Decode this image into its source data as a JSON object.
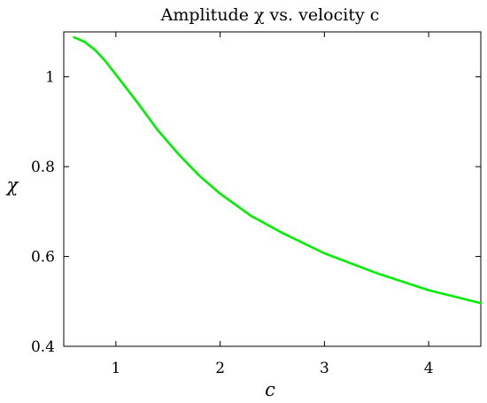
{
  "chart_data": {
    "type": "line",
    "title": "Amplitude χ vs. velocity c",
    "xlabel": "c",
    "ylabel": "χ",
    "xlim": [
      0.5,
      4.5
    ],
    "ylim": [
      0.4,
      1.1
    ],
    "xticks": [
      1,
      2,
      3,
      4
    ],
    "yticks": [
      0.4,
      0.6,
      0.8,
      1
    ],
    "xtick_labels": [
      "1",
      "2",
      "3",
      "4"
    ],
    "ytick_labels": [
      "0.4",
      "0.6",
      "0.8",
      "1"
    ],
    "grid": false,
    "series": [
      {
        "color": "#00ee00",
        "x": [
          0.6,
          0.7,
          0.8,
          0.9,
          1.0,
          1.1,
          1.2,
          1.4,
          1.6,
          1.8,
          2.0,
          2.3,
          2.6,
          3.0,
          3.5,
          4.0,
          4.5
        ],
        "y": [
          1.088,
          1.078,
          1.06,
          1.035,
          1.005,
          0.975,
          0.945,
          0.882,
          0.828,
          0.78,
          0.74,
          0.69,
          0.652,
          0.607,
          0.563,
          0.525,
          0.496
        ]
      }
    ]
  }
}
